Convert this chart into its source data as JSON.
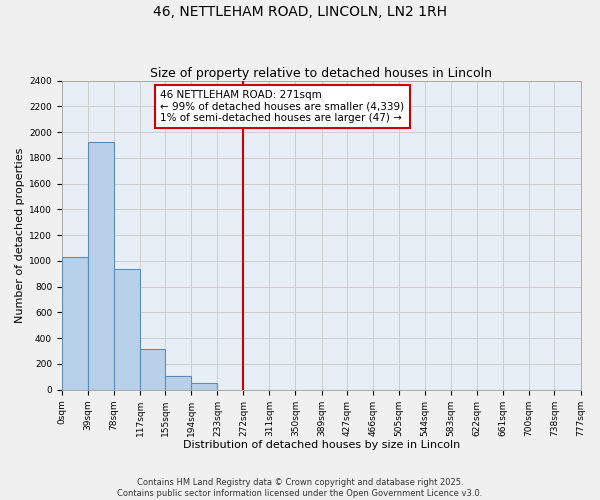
{
  "title": "46, NETTLEHAM ROAD, LINCOLN, LN2 1RH",
  "subtitle": "Size of property relative to detached houses in Lincoln",
  "xlabel": "Distribution of detached houses by size in Lincoln",
  "ylabel": "Number of detached properties",
  "bin_edges": [
    0,
    39,
    78,
    117,
    155,
    194,
    233,
    272,
    311,
    350,
    389,
    427,
    466,
    505,
    544,
    583,
    622,
    661,
    700,
    738,
    777
  ],
  "bin_labels": [
    "0sqm",
    "39sqm",
    "78sqm",
    "117sqm",
    "155sqm",
    "194sqm",
    "233sqm",
    "272sqm",
    "311sqm",
    "350sqm",
    "389sqm",
    "427sqm",
    "466sqm",
    "505sqm",
    "544sqm",
    "583sqm",
    "622sqm",
    "661sqm",
    "700sqm",
    "738sqm",
    "777sqm"
  ],
  "counts": [
    1030,
    1920,
    940,
    320,
    105,
    50,
    0,
    0,
    0,
    0,
    0,
    0,
    0,
    0,
    0,
    0,
    0,
    0,
    0,
    0
  ],
  "bar_color": "#b8d0e8",
  "bar_edge_color": "#5b8db8",
  "vline_x": 272,
  "vline_color": "#cc0000",
  "annotation_line1": "46 NETTLEHAM ROAD: 271sqm",
  "annotation_line2": "← 99% of detached houses are smaller (4,339)",
  "annotation_line3": "1% of semi-detached houses are larger (47) →",
  "ylim": [
    0,
    2400
  ],
  "yticks": [
    0,
    200,
    400,
    600,
    800,
    1000,
    1200,
    1400,
    1600,
    1800,
    2000,
    2200,
    2400
  ],
  "background_color": "#f0f0f0",
  "plot_bg_color": "#e8eef5",
  "grid_color": "#c8c8c8",
  "footer_line1": "Contains HM Land Registry data © Crown copyright and database right 2025.",
  "footer_line2": "Contains public sector information licensed under the Open Government Licence v3.0.",
  "title_fontsize": 10,
  "subtitle_fontsize": 9,
  "xlabel_fontsize": 8,
  "ylabel_fontsize": 8,
  "tick_fontsize": 6.5,
  "annotation_fontsize": 7.5,
  "footer_fontsize": 6
}
